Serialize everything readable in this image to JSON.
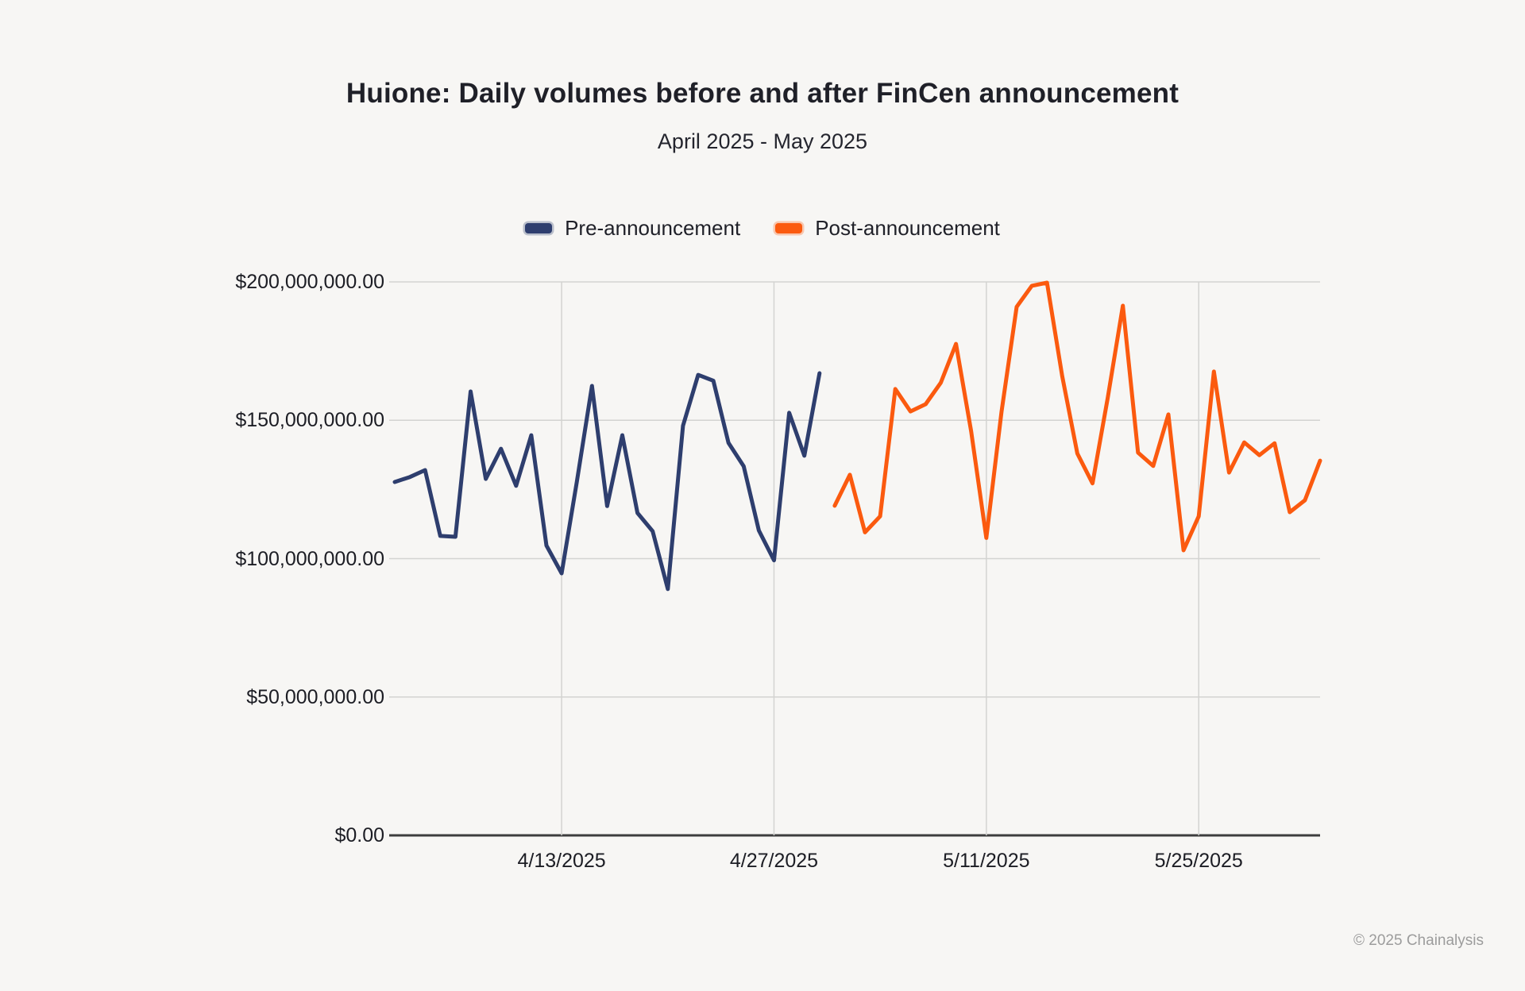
{
  "watermark": "© 2025 Chainalysis",
  "colors": {
    "background": "#f7f6f4",
    "gridline": "#d3d3d1",
    "axis": "#3d3d3d",
    "text": "#1f2028",
    "pre_series": "#2e3e6e",
    "post_series": "#fb5a0f",
    "watermark": "#9c9c9c"
  },
  "chart_data": {
    "type": "line",
    "title": "Huione: Daily volumes before and after FinCen announcement",
    "subtitle": "April 2025 - May 2025",
    "legend_position": "top-center",
    "grid": true,
    "ylim": [
      0,
      200000000
    ],
    "ylabel": "",
    "xlabel": "",
    "y_ticks": [
      {
        "label": "$200,000,000.00",
        "value": 200000000
      },
      {
        "label": "$150,000,000.00",
        "value": 150000000
      },
      {
        "label": "$100,000,000.00",
        "value": 100000000
      },
      {
        "label": "$50,000,000.00",
        "value": 50000000
      },
      {
        "label": "$0.00",
        "value": 0
      }
    ],
    "x_ticks": [
      {
        "label": "4/13/2025"
      },
      {
        "label": "4/27/2025"
      },
      {
        "label": "5/11/2025"
      },
      {
        "label": "5/25/2025"
      }
    ],
    "series": [
      {
        "name": "Pre-announcement",
        "color": "#2e3e6e",
        "dates": [
          "4/2/2025",
          "4/3/2025",
          "4/4/2025",
          "4/5/2025",
          "4/6/2025",
          "4/7/2025",
          "4/8/2025",
          "4/9/2025",
          "4/10/2025",
          "4/11/2025",
          "4/12/2025",
          "4/13/2025",
          "4/14/2025",
          "4/15/2025",
          "4/16/2025",
          "4/17/2025",
          "4/18/2025",
          "4/19/2025",
          "4/20/2025",
          "4/21/2025",
          "4/22/2025",
          "4/23/2025",
          "4/24/2025",
          "4/25/2025",
          "4/26/2025",
          "4/27/2025",
          "4/28/2025",
          "4/29/2025",
          "4/30/2025"
        ],
        "values": [
          127700000,
          129500000,
          132000000,
          108200000,
          107900000,
          160400000,
          128800000,
          139700000,
          126300000,
          144600000,
          104700000,
          94700000,
          127700000,
          162400000,
          119000000,
          144600000,
          116500000,
          109900000,
          89000000,
          148000000,
          166400000,
          164300000,
          141800000,
          133400000,
          110200000,
          99400000,
          152700000,
          137200000,
          167000000
        ]
      },
      {
        "name": "Post-announcement",
        "color": "#fb5a0f",
        "dates": [
          "5/1/2025",
          "5/2/2025",
          "5/3/2025",
          "5/4/2025",
          "5/5/2025",
          "5/6/2025",
          "5/7/2025",
          "5/8/2025",
          "5/9/2025",
          "5/10/2025",
          "5/11/2025",
          "5/12/2025",
          "5/13/2025",
          "5/14/2025",
          "5/15/2025",
          "5/16/2025",
          "5/17/2025",
          "5/18/2025",
          "5/19/2025",
          "5/20/2025",
          "5/21/2025",
          "5/22/2025",
          "5/23/2025",
          "5/24/2025",
          "5/25/2025",
          "5/26/2025",
          "5/27/2025",
          "5/28/2025",
          "5/29/2025",
          "5/30/2025",
          "5/31/2025",
          "6/1/2025",
          "6/2/2025"
        ],
        "values": [
          119100000,
          130300000,
          109500000,
          115300000,
          161300000,
          153200000,
          155800000,
          163600000,
          177600000,
          146000000,
          107500000,
          153000000,
          191000000,
          198600000,
          199700000,
          166000000,
          138000000,
          127200000,
          158000000,
          191400000,
          138300000,
          133500000,
          152100000,
          103000000,
          115300000,
          167600000,
          131100000,
          142000000,
          137400000,
          141700000,
          116800000,
          121100000,
          135400000
        ]
      }
    ]
  }
}
